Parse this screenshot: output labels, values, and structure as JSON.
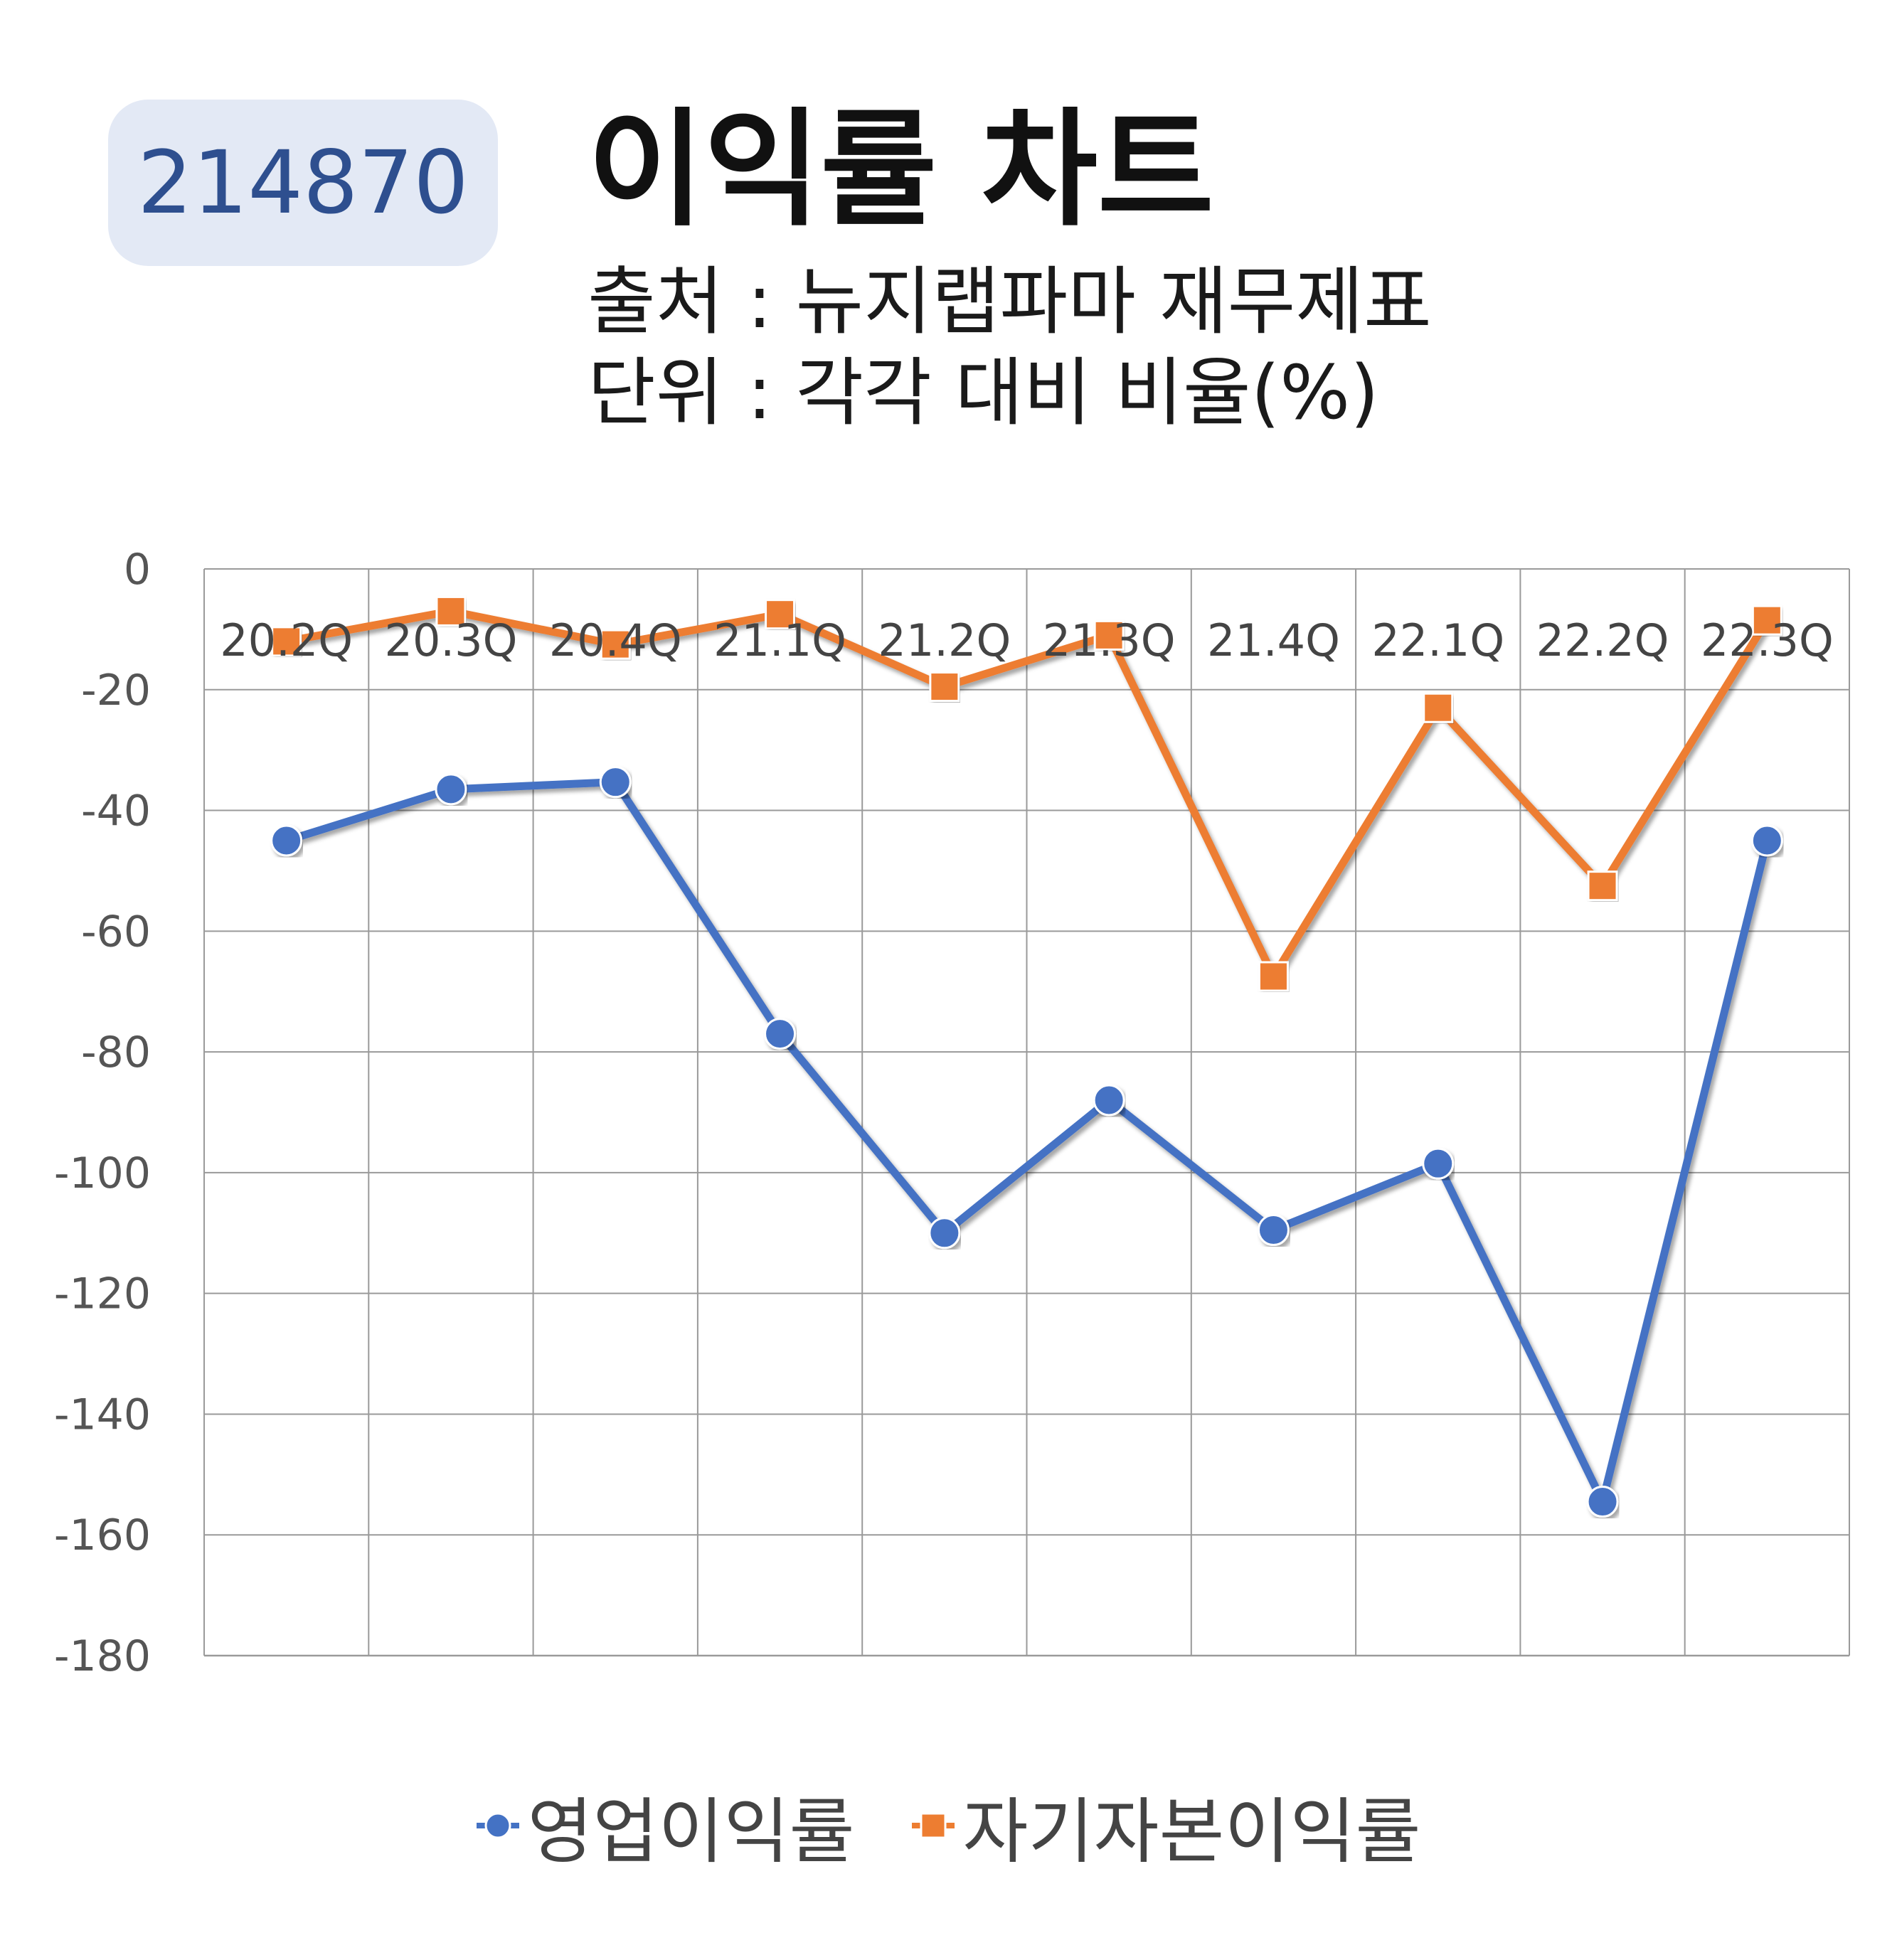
{
  "badge": {
    "code": "214870"
  },
  "header": {
    "title": "이익률 차트",
    "source": "출처 : 뉴지랩파마 재무제표",
    "unit": "단위 : 각각 대비 비율(%)"
  },
  "colors": {
    "series_1": "#4472c4",
    "series_2": "#ed7d31",
    "badge_bg": "#e3e9f5",
    "badge_text": "#2e4f8f"
  },
  "chart_data": {
    "type": "line",
    "categories": [
      "20.2Q",
      "20.3Q",
      "20.4Q",
      "21.1Q",
      "21.2Q",
      "21.3Q",
      "21.4Q",
      "22.1Q",
      "22.2Q",
      "22.3Q"
    ],
    "series": [
      {
        "name": "영업이익률",
        "marker": "circle",
        "color": "#4472c4",
        "values": [
          -45,
          -36.5,
          -35.3,
          -77,
          -110,
          -88,
          -109.5,
          -98.5,
          -154.5,
          -45
        ]
      },
      {
        "name": "자기자본이익률",
        "marker": "square",
        "color": "#ed7d31",
        "values": [
          -12,
          -7,
          -12.5,
          -7.5,
          -19.5,
          -11,
          -67.5,
          -23,
          -52.5,
          -8.5
        ]
      }
    ],
    "yticks": [
      "0",
      "-20",
      "-40",
      "-60",
      "-80",
      "-100",
      "-120",
      "-140",
      "-160",
      "-180"
    ],
    "ylim": [
      -180,
      0
    ],
    "grid": true,
    "category_labels_position": "top",
    "legend_position": "bottom"
  }
}
